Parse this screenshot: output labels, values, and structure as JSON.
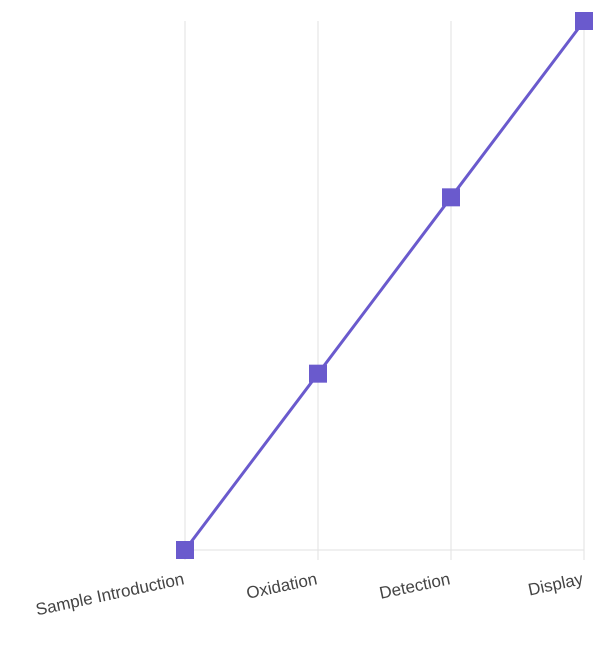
{
  "chart_data": {
    "type": "line",
    "categories": [
      "Sample Introduction",
      "Oxidation",
      "Detection",
      "Display"
    ],
    "values": [
      1,
      2,
      3,
      4
    ],
    "color": "#6a5acd",
    "ylim": [
      1,
      4
    ],
    "grid": true
  }
}
